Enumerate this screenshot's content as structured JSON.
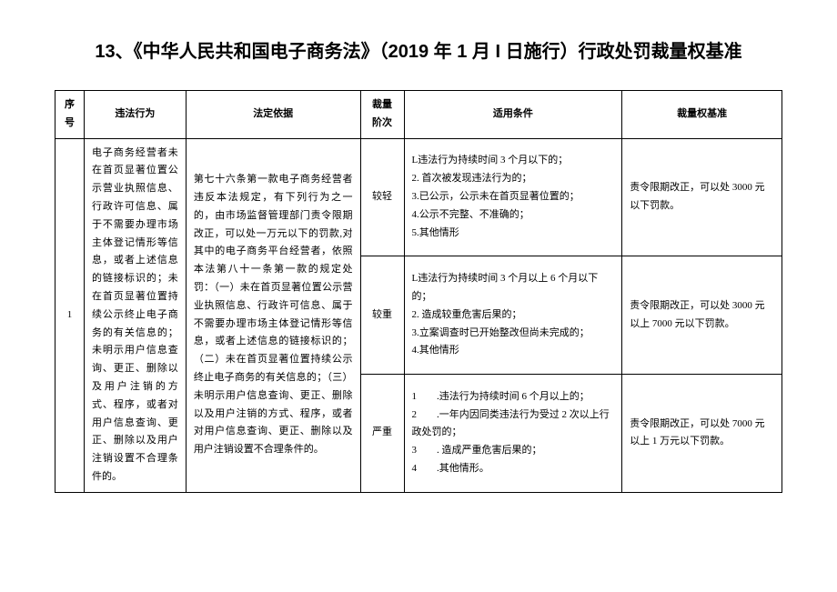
{
  "title": "13、《中华人民共和国电子商务法》（2019 年 1 月 I 日施行）行政处罚裁量权基准",
  "headers": {
    "num": "序号",
    "behavior": "违法行为",
    "basis": "法定依据",
    "level": "裁量阶次",
    "condition": "适用条件",
    "standard": "裁量权基准"
  },
  "row": {
    "num": "1",
    "behavior": "电子商务经营者未在首页显著位置公示营业执照信息、行政许可信息、属于不需要办理市场主体登记情形等信息，或者上述信息的链接标识的；未在首页显著位置持续公示终止电子商务的有关信息的；未明示用户信息查询、更正、删除以及用户注销的方式、程序，或者对用户信息查询、更正、删除以及用户注销设置不合理条件的。",
    "basis": "第七十六条第一款电子商务经营者违反本法规定，有下列行为之一的，由市场监督管理部门责令限期改正，可以处一万元以下的罚款,对其中的电子商务平台经营者，依照本法第八十一条第一款的规定处罚：（一）未在首页显著位置公示营业执照信息、行政许可信息、属于不需要办理市场主体登记情形等信息，或者上述信息的链接标识的；（二）未在首页显著位置持续公示终止电子商务的有关信息的；（三）未明示用户信息查询、更正、删除以及用户注销的方式、程序，或者对用户信息查询、更正、删除以及用户注销设置不合理条件的。",
    "levels": {
      "light": {
        "label": "较轻",
        "condition": "L违法行为持续时间 3 个月以下的；\n2. 首次被发现违法行为的；\n3.已公示，公示未在首页显著位置的；\n4.公示不完整、不准确的；\n5.其他情形",
        "standard": "责令限期改正，可以处 3000 元以下罚款。"
      },
      "heavy": {
        "label": "较重",
        "condition": "L违法行为持续时间 3 个月以上 6 个月以下的；\n2. 造成较重危害后果的；\n3.立案调查时已开始整改但尚未完成的；\n4.其他情形",
        "standard": "责令限期改正，可以处 3000 元以上 7000 元以下罚款。"
      },
      "severe": {
        "label": "严重",
        "condition": "1　　.违法行为持续时间 6 个月以上的；\n2　　.一年内因同类违法行为受过 2 次以上行政处罚的；\n3　　. 造成严重危害后果的；\n4　　.其他情形。",
        "standard": "责令限期改正，可以处 7000 元以上 1 万元以下罚款。"
      }
    }
  }
}
